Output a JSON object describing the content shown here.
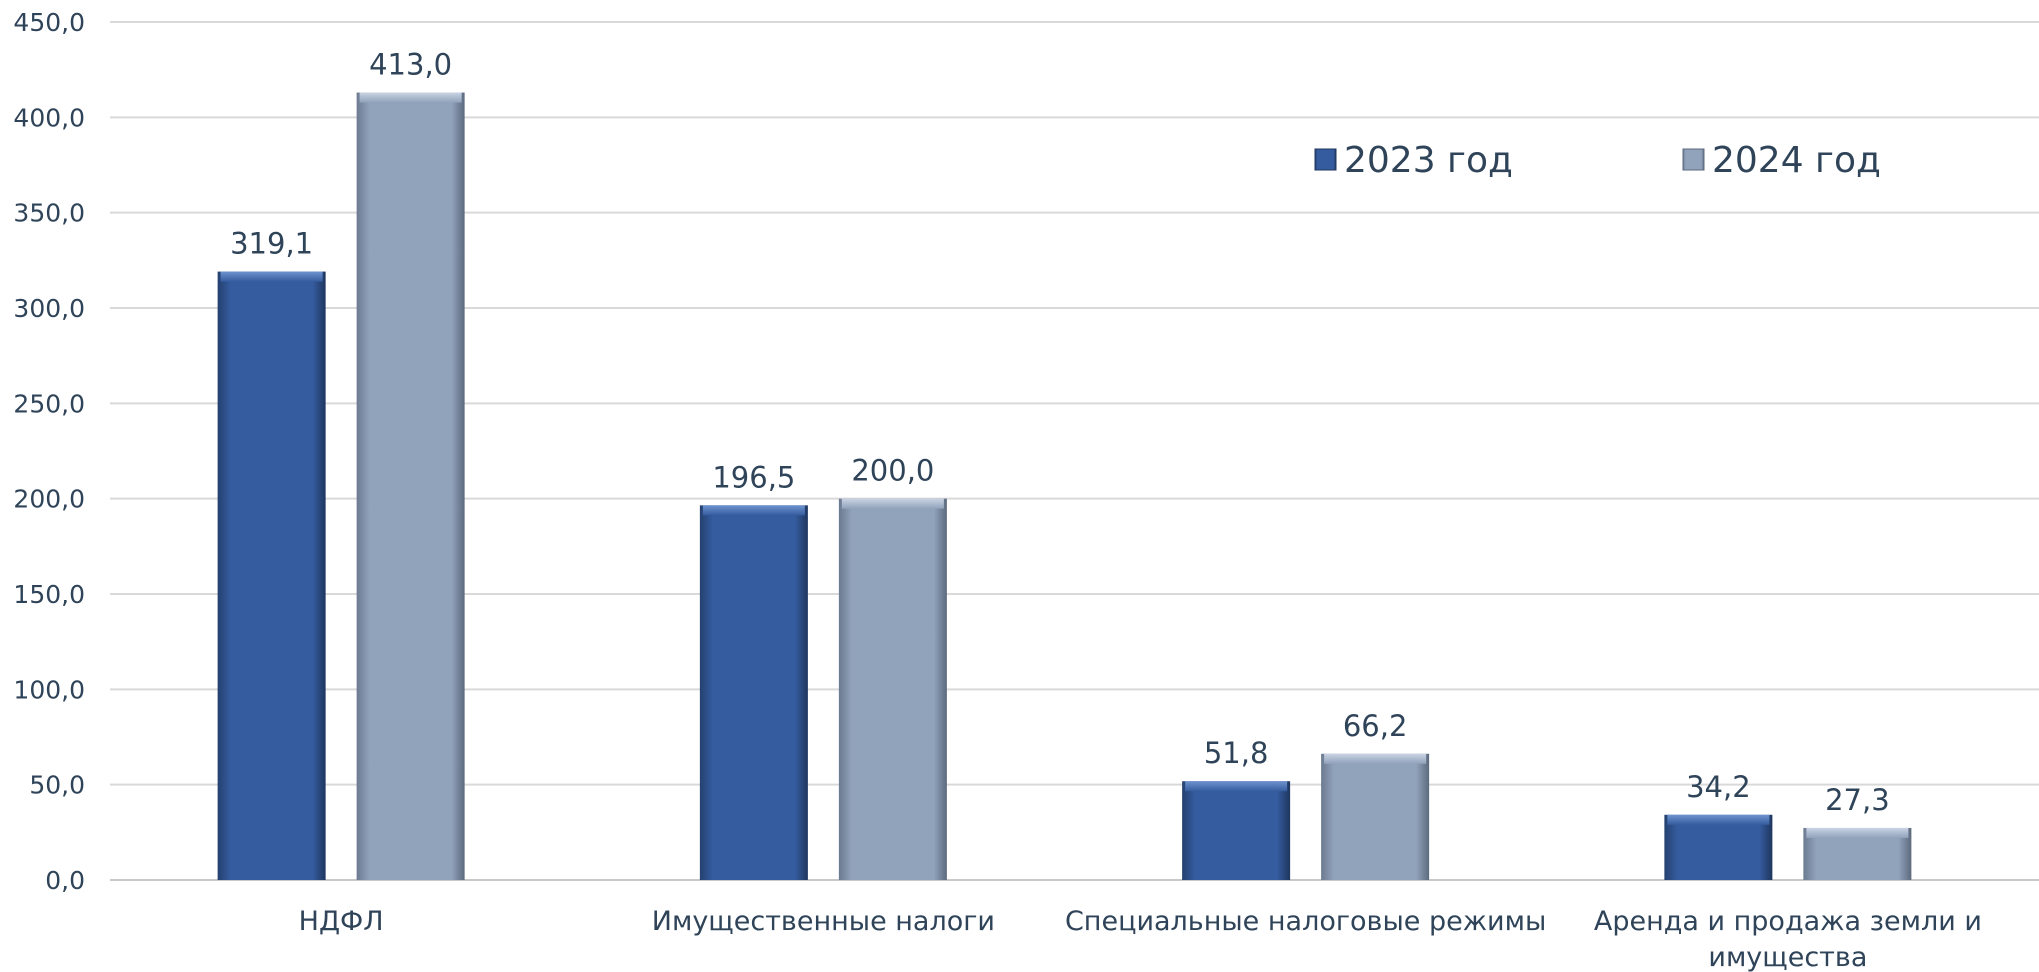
{
  "chart_data": {
    "type": "bar",
    "categories": [
      [
        "НДФЛ"
      ],
      [
        "Имущественные налоги"
      ],
      [
        "Специальные налоговые режимы"
      ],
      [
        "Аренда и продажа земли и",
        "имущества"
      ]
    ],
    "series": [
      {
        "name": "2023 год",
        "values": [
          319.1,
          196.5,
          51.8,
          34.2
        ],
        "labels": [
          "319,1",
          "196,5",
          "51,8",
          "34,2"
        ],
        "color": "#355c9f"
      },
      {
        "name": "2024 год",
        "values": [
          413.0,
          200.0,
          66.2,
          27.3
        ],
        "labels": [
          "413,0",
          "200,0",
          "66,2",
          "27,3"
        ],
        "color": "#91a2bb"
      }
    ],
    "ylim": [
      0,
      450
    ],
    "yticks": [
      0,
      50,
      100,
      150,
      200,
      250,
      300,
      350,
      400,
      450
    ],
    "ytick_labels": [
      "0,0",
      "50,0",
      "100,0",
      "150,0",
      "200,0",
      "250,0",
      "300,0",
      "350,0",
      "400,0",
      "450,0"
    ],
    "grid": true,
    "legend_position": "top-right",
    "title": "",
    "xlabel": "",
    "ylabel": ""
  }
}
